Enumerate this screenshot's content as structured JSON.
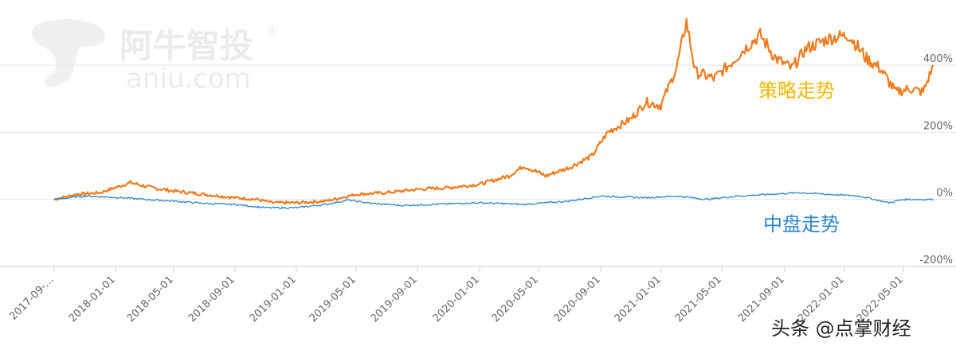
{
  "watermark": {
    "brand_cn": "阿牛智投",
    "registered": "®",
    "domain": "aniu.com"
  },
  "footer": {
    "source_text": "头条 @点掌财经"
  },
  "colors": {
    "strategy": "#f07c1e",
    "midcap": "#2e86c8",
    "strategy_label": "#f5b800",
    "midcap_label": "#2e86c8",
    "grid": "#e6e6e6",
    "axis": "#c8d0e0"
  },
  "chart_data": {
    "type": "line",
    "title": "",
    "xlabel": "",
    "ylabel": "",
    "x_ticks": [
      "2017-09-…",
      "2018-01-01",
      "2018-05-01",
      "2018-09-01",
      "2019-01-01",
      "2019-05-01",
      "2019-09-01",
      "2020-01-01",
      "2020-05-01",
      "2020-09-01",
      "2021-01-01",
      "2021-05-01",
      "2021-09-01",
      "2022-01-01",
      "2022-05-01"
    ],
    "x_range": [
      "2017-09-01",
      "2022-07-01"
    ],
    "y_ticks": [
      {
        "value": 400,
        "label": "400%"
      },
      {
        "value": 200,
        "label": "200%"
      },
      {
        "value": 0,
        "label": "0%"
      },
      {
        "value": -200,
        "label": "-200%"
      }
    ],
    "ylim": [
      -200,
      400
    ],
    "grid": true,
    "series": [
      {
        "name": "策略走势",
        "points": [
          [
            "2017-09-01",
            0
          ],
          [
            "2017-10-15",
            15
          ],
          [
            "2017-12-01",
            20
          ],
          [
            "2018-02-01",
            50
          ],
          [
            "2018-03-15",
            35
          ],
          [
            "2018-05-01",
            25
          ],
          [
            "2018-07-01",
            15
          ],
          [
            "2018-09-01",
            5
          ],
          [
            "2018-10-15",
            0
          ],
          [
            "2018-11-15",
            -10
          ],
          [
            "2019-01-01",
            -10
          ],
          [
            "2019-03-01",
            -5
          ],
          [
            "2019-05-01",
            15
          ],
          [
            "2019-07-01",
            20
          ],
          [
            "2019-09-01",
            30
          ],
          [
            "2019-11-01",
            35
          ],
          [
            "2020-01-01",
            45
          ],
          [
            "2020-03-01",
            70
          ],
          [
            "2020-04-01",
            100
          ],
          [
            "2020-05-15",
            70
          ],
          [
            "2020-07-01",
            95
          ],
          [
            "2020-08-15",
            130
          ],
          [
            "2020-09-15",
            200
          ],
          [
            "2020-11-01",
            240
          ],
          [
            "2020-12-01",
            290
          ],
          [
            "2020-12-31",
            280
          ],
          [
            "2021-01-31",
            390
          ],
          [
            "2021-02-20",
            530
          ],
          [
            "2021-03-10",
            380
          ],
          [
            "2021-04-15",
            360
          ],
          [
            "2021-05-15",
            400
          ],
          [
            "2021-06-15",
            450
          ],
          [
            "2021-07-15",
            490
          ],
          [
            "2021-08-15",
            420
          ],
          [
            "2021-09-15",
            390
          ],
          [
            "2021-10-15",
            450
          ],
          [
            "2021-12-01",
            480
          ],
          [
            "2022-01-10",
            490
          ],
          [
            "2022-02-15",
            420
          ],
          [
            "2022-03-15",
            390
          ],
          [
            "2022-04-15",
            320
          ],
          [
            "2022-05-15",
            330
          ],
          [
            "2022-06-10",
            320
          ],
          [
            "2022-07-01",
            400
          ]
        ]
      },
      {
        "name": "中盘走势",
        "points": [
          [
            "2017-09-01",
            0
          ],
          [
            "2017-11-01",
            10
          ],
          [
            "2018-01-15",
            5
          ],
          [
            "2018-03-01",
            0
          ],
          [
            "2018-05-01",
            -5
          ],
          [
            "2018-07-01",
            -12
          ],
          [
            "2018-09-01",
            -15
          ],
          [
            "2018-11-01",
            -25
          ],
          [
            "2019-01-01",
            -25
          ],
          [
            "2019-03-01",
            -15
          ],
          [
            "2019-04-15",
            -2
          ],
          [
            "2019-06-01",
            -12
          ],
          [
            "2019-08-01",
            -18
          ],
          [
            "2019-10-01",
            -15
          ],
          [
            "2020-01-01",
            -10
          ],
          [
            "2020-04-01",
            -15
          ],
          [
            "2020-07-01",
            -5
          ],
          [
            "2020-09-01",
            10
          ],
          [
            "2020-12-01",
            5
          ],
          [
            "2021-02-01",
            10
          ],
          [
            "2021-04-01",
            0
          ],
          [
            "2021-06-01",
            10
          ],
          [
            "2021-08-01",
            15
          ],
          [
            "2021-10-01",
            20
          ],
          [
            "2021-12-01",
            15
          ],
          [
            "2022-02-01",
            10
          ],
          [
            "2022-04-01",
            -10
          ],
          [
            "2022-05-01",
            0
          ],
          [
            "2022-07-01",
            0
          ]
        ]
      }
    ]
  }
}
